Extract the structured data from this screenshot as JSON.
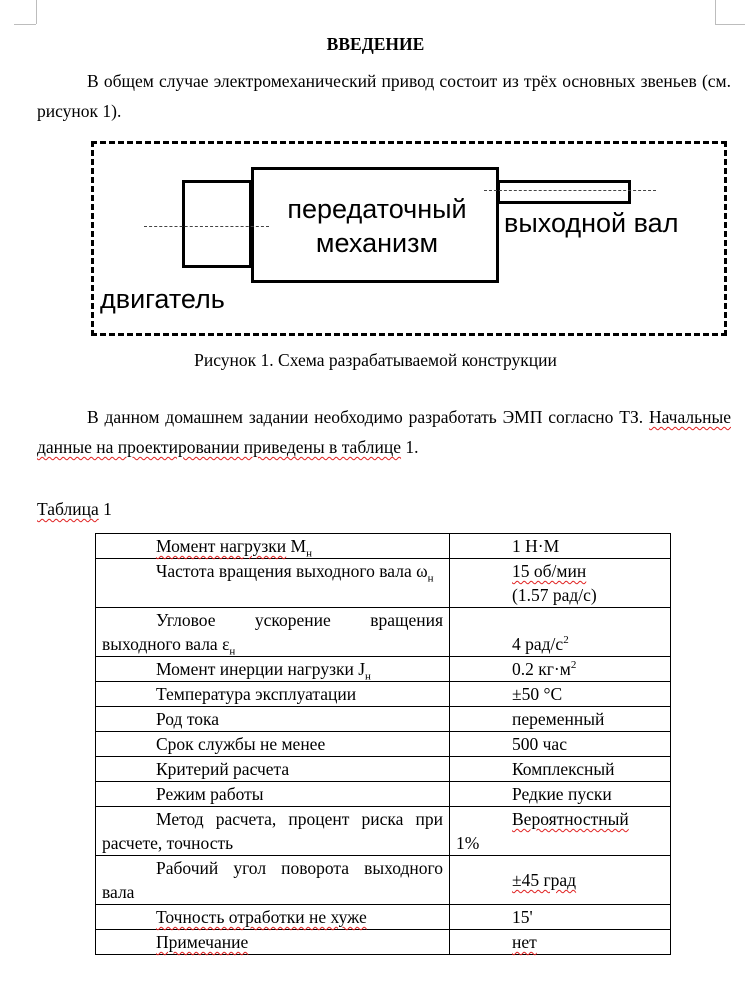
{
  "heading": "ВВЕДЕНИЕ",
  "intro": "В общем случае электромеханический привод состоит из трёх основных звеньев (см. рисунок 1).",
  "figure": {
    "motor_label": "двигатель",
    "gear_label_1": "передаточный",
    "gear_label_2": "механизм",
    "shaft_label": "выходной вал",
    "caption": "Рисунок 1. Схема разрабатываемой конструкции"
  },
  "para2_start": "В данном домашнем задании необходимо разработать ЭМП согласно ТЗ. ",
  "para2_link": "Начальные данные на проектировании приведены в таблице",
  "para2_end": " 1.",
  "table_label": "Таблица",
  "table_label_num": " 1",
  "table": [
    {
      "name": "Момент нагрузки",
      "sub": "н",
      "pre": "М",
      "value": "1 Н·М"
    },
    {
      "name": "Частота вращения выходного вала ω",
      "sub": "н",
      "value": "15 об/мин",
      "value2": "(1.57 рад/с)"
    },
    {
      "name": "Угловое ускорение вращения выходного вала ε",
      "sub": "н",
      "value": "4 рад/с",
      "sup": "2"
    },
    {
      "name": "Момент инерции нагрузки J",
      "sub": "н",
      "value": "0.2 кг·м",
      "sup": "2"
    },
    {
      "name": "Температура эксплуатации",
      "value": "±50 °С"
    },
    {
      "name": "Род тока",
      "value": "переменный"
    },
    {
      "name": "Срок службы не менее",
      "value": "500 час"
    },
    {
      "name": "Критерий расчета",
      "value": "Комплексный"
    },
    {
      "name": "Режим работы",
      "value": "Редкие пуски"
    },
    {
      "name": "Метод расчета, процент риска при расчете, точность",
      "value": "Вероятностный",
      "value2": "1%"
    },
    {
      "name": "Рабочий угол поворота выходного вала",
      "value": "±45 град"
    },
    {
      "name": "Точность отработки не хуже",
      "value": "15'"
    },
    {
      "name": "Примечание",
      "value": "нет"
    }
  ]
}
